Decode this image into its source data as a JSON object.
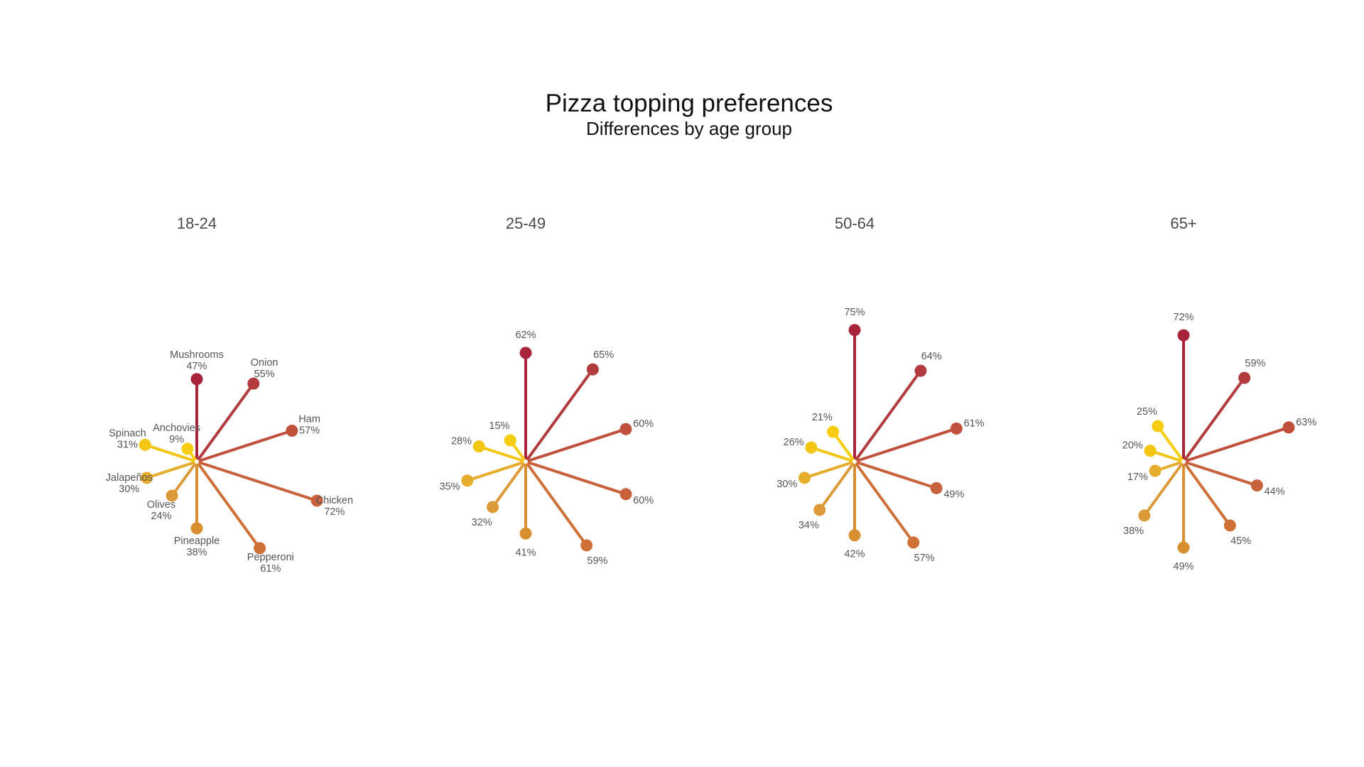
{
  "chart_data": {
    "type": "radial-lollipop",
    "title": "Pizza topping preferences",
    "subtitle": "Differences by age group",
    "toppings": [
      "Mushrooms",
      "Onion",
      "Ham",
      "Chicken",
      "Pepperoni",
      "Pineapple",
      "Olives",
      "Jalapeños",
      "Spinach",
      "Anchovies"
    ],
    "colors": [
      "#a8243a",
      "#b23b3e",
      "#c0503c",
      "#c8623d",
      "#cf7038",
      "#d88f30",
      "#dd9a38",
      "#e6ad2c",
      "#f2c613",
      "#f6cd12"
    ],
    "groups": [
      {
        "name": "18-24",
        "values": [
          47,
          55,
          57,
          72,
          61,
          38,
          24,
          30,
          31,
          9
        ]
      },
      {
        "name": "25-49",
        "values": [
          62,
          65,
          60,
          60,
          59,
          41,
          32,
          35,
          28,
          15
        ]
      },
      {
        "name": "50-64",
        "values": [
          75,
          64,
          61,
          49,
          57,
          42,
          34,
          30,
          26,
          21
        ]
      },
      {
        "name": "65+",
        "values": [
          72,
          59,
          63,
          44,
          45,
          49,
          38,
          17,
          20,
          25
        ]
      }
    ]
  }
}
